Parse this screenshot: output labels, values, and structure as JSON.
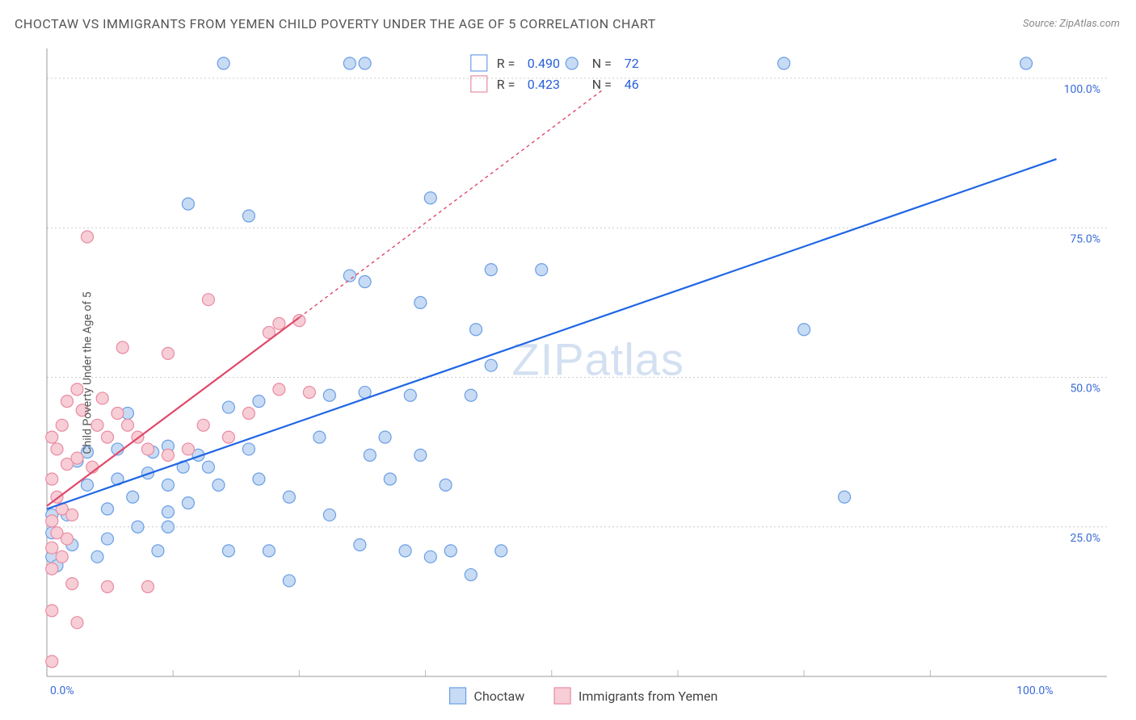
{
  "title": "CHOCTAW VS IMMIGRANTS FROM YEMEN CHILD POVERTY UNDER THE AGE OF 5 CORRELATION CHART",
  "source": "Source: ZipAtlas.com",
  "ylabel": "Child Poverty Under the Age of 5",
  "watermark": "ZIPatlas",
  "chart": {
    "type": "scatter",
    "background_color": "#ffffff",
    "grid_color": "#cccccc",
    "axis_color": "#999999",
    "x": {
      "min": 0,
      "max": 105,
      "ticks": [
        0,
        100
      ],
      "tick_labels": [
        "0.0%",
        "100.0%"
      ],
      "tick_minor": [
        12.5,
        25,
        37.5,
        50,
        62.5,
        75,
        87.5
      ],
      "label_color": "#3a6bd6"
    },
    "y": {
      "min": 0,
      "max": 105,
      "ticks": [
        25,
        50,
        75,
        100
      ],
      "tick_labels": [
        "25.0%",
        "50.0%",
        "75.0%",
        "100.0%"
      ],
      "label_color": "#3a6bd6"
    },
    "series": [
      {
        "name": "Choctaw",
        "marker_fill": "#c7dbf4",
        "marker_stroke": "#6a9ee5",
        "marker_radius": 7.5,
        "trend_color": "#1f66e5",
        "trend": {
          "x0": 0,
          "y0": 28,
          "x1_solid": 100,
          "y1_solid": 86.5
        },
        "stats": {
          "R": "0.490",
          "N": "72"
        },
        "points": [
          [
            17.5,
            102.5
          ],
          [
            30,
            102.5
          ],
          [
            31.5,
            102.5
          ],
          [
            38,
            80
          ],
          [
            52,
            102.5
          ],
          [
            73,
            102.5
          ],
          [
            97,
            102.5
          ],
          [
            14,
            79
          ],
          [
            20,
            77
          ],
          [
            30,
            67
          ],
          [
            31.5,
            66
          ],
          [
            37,
            62.5
          ],
          [
            44,
            68
          ],
          [
            49,
            68
          ],
          [
            42.5,
            58
          ],
          [
            44,
            52
          ],
          [
            36,
            47
          ],
          [
            31.5,
            47.5
          ],
          [
            28,
            47
          ],
          [
            18,
            45
          ],
          [
            21,
            46
          ],
          [
            12,
            38.5
          ],
          [
            8,
            44
          ],
          [
            3,
            36
          ],
          [
            75,
            58
          ],
          [
            79,
            30
          ],
          [
            15,
            37
          ],
          [
            20,
            38
          ],
          [
            21,
            33
          ],
          [
            24,
            30
          ],
          [
            27,
            40
          ],
          [
            32,
            37
          ],
          [
            33.5,
            40
          ],
          [
            34,
            33
          ],
          [
            37,
            37
          ],
          [
            39.5,
            32
          ],
          [
            42,
            47
          ],
          [
            35.5,
            21
          ],
          [
            28,
            27
          ],
          [
            31,
            22
          ],
          [
            38,
            20
          ],
          [
            40,
            21
          ],
          [
            42,
            17
          ],
          [
            45,
            21
          ],
          [
            24,
            16
          ],
          [
            22,
            21
          ],
          [
            18,
            21
          ],
          [
            11,
            21
          ],
          [
            8.5,
            30
          ],
          [
            6,
            28
          ],
          [
            2,
            27
          ],
          [
            2.5,
            22
          ],
          [
            0.5,
            27
          ],
          [
            0.5,
            24
          ],
          [
            0.5,
            20
          ],
          [
            7,
            33
          ],
          [
            10,
            34
          ],
          [
            12,
            32
          ],
          [
            13.5,
            35
          ],
          [
            16,
            35
          ],
          [
            17,
            32
          ],
          [
            4,
            32
          ],
          [
            4,
            37.5
          ],
          [
            7,
            38
          ],
          [
            10.5,
            37.5
          ],
          [
            6,
            23
          ],
          [
            9,
            25
          ],
          [
            12,
            27.5
          ],
          [
            14,
            29
          ],
          [
            12,
            25
          ],
          [
            5,
            20
          ],
          [
            1,
            18.5
          ]
        ]
      },
      {
        "name": "Immigrants from Yemen",
        "marker_fill": "#f7cdd6",
        "marker_stroke": "#e88ba1",
        "marker_radius": 7.5,
        "trend_color": "#e04869",
        "trend": {
          "x0": 0,
          "y0": 28.5,
          "x1_solid": 25,
          "y1_solid": 60,
          "x1_dash": 55,
          "y1_dash": 98
        },
        "stats": {
          "R": "0.423",
          "N": "46"
        },
        "points": [
          [
            4,
            73.5
          ],
          [
            16,
            63
          ],
          [
            12,
            54
          ],
          [
            7.5,
            55
          ],
          [
            22,
            57.5
          ],
          [
            23,
            59
          ],
          [
            25,
            59.5
          ],
          [
            3,
            48
          ],
          [
            2,
            46
          ],
          [
            3.5,
            44.5
          ],
          [
            5.5,
            46.5
          ],
          [
            1.5,
            42
          ],
          [
            5,
            42
          ],
          [
            7,
            44
          ],
          [
            0.5,
            40
          ],
          [
            1,
            38
          ],
          [
            2,
            35.5
          ],
          [
            3,
            36.5
          ],
          [
            4.5,
            35
          ],
          [
            6,
            40
          ],
          [
            8,
            42
          ],
          [
            9,
            40
          ],
          [
            10,
            38
          ],
          [
            12,
            37
          ],
          [
            14,
            38
          ],
          [
            15.5,
            42
          ],
          [
            18,
            40
          ],
          [
            20,
            44
          ],
          [
            23,
            48
          ],
          [
            26,
            47.5
          ],
          [
            0.5,
            33
          ],
          [
            1,
            30
          ],
          [
            1.5,
            28
          ],
          [
            2.5,
            27
          ],
          [
            0.5,
            26
          ],
          [
            1,
            24
          ],
          [
            2,
            23
          ],
          [
            0.5,
            21.5
          ],
          [
            1.5,
            20
          ],
          [
            0.5,
            18
          ],
          [
            2.5,
            15.5
          ],
          [
            6,
            15
          ],
          [
            0.5,
            11
          ],
          [
            3,
            9
          ],
          [
            0.5,
            2.5
          ],
          [
            10,
            15
          ]
        ]
      }
    ],
    "legend": {
      "items": [
        {
          "label": "Choctaw",
          "fill": "#c7dbf4",
          "stroke": "#6a9ee5"
        },
        {
          "label": "Immigrants from Yemen",
          "fill": "#f7cdd6",
          "stroke": "#e88ba1"
        }
      ]
    },
    "statbox": {
      "pos": "top-center"
    }
  }
}
